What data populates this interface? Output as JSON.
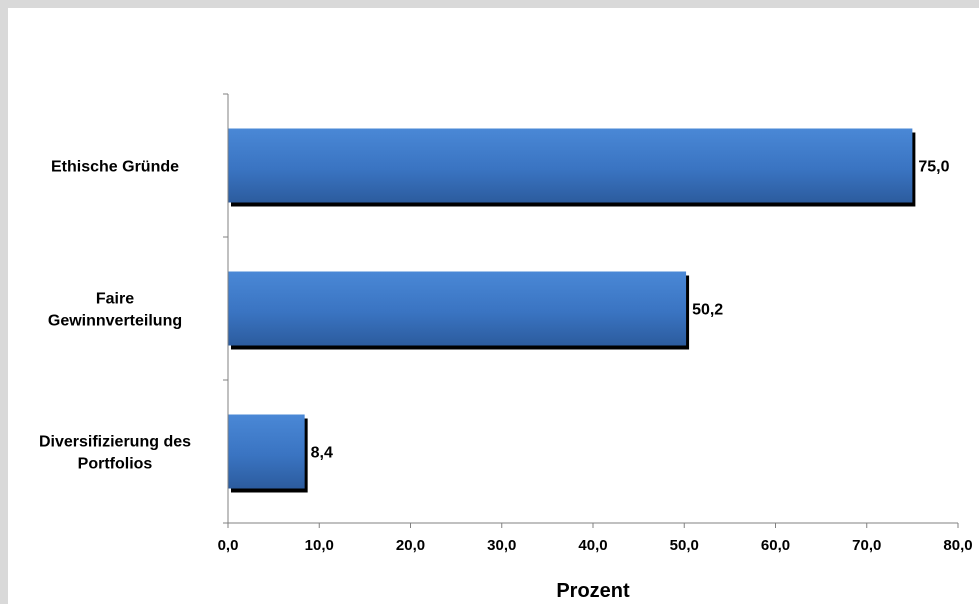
{
  "chart_data": {
    "type": "bar",
    "orientation": "horizontal",
    "categories": [
      "Ethische Gründe",
      "Faire Gewinnverteilung",
      "Diversifizierung des Portfolios"
    ],
    "category_lines": [
      [
        "Ethische Gründe"
      ],
      [
        "Faire",
        "Gewinnverteilung"
      ],
      [
        "Diversifizierung des",
        "Portfolios"
      ]
    ],
    "values": [
      75.0,
      50.2,
      8.4
    ],
    "data_labels": [
      "75,0",
      "50,2",
      "8,4"
    ],
    "xlabel": "Prozent",
    "xlim": [
      0,
      80
    ],
    "x_ticks": [
      "0,0",
      "10,0",
      "20,0",
      "30,0",
      "40,0",
      "50,0",
      "60,0",
      "70,0",
      "80,0"
    ],
    "grid": false,
    "bar_color": "#3a78c8",
    "bar_color_dark": "#2a5a9c",
    "shadow_color": "#000000"
  }
}
